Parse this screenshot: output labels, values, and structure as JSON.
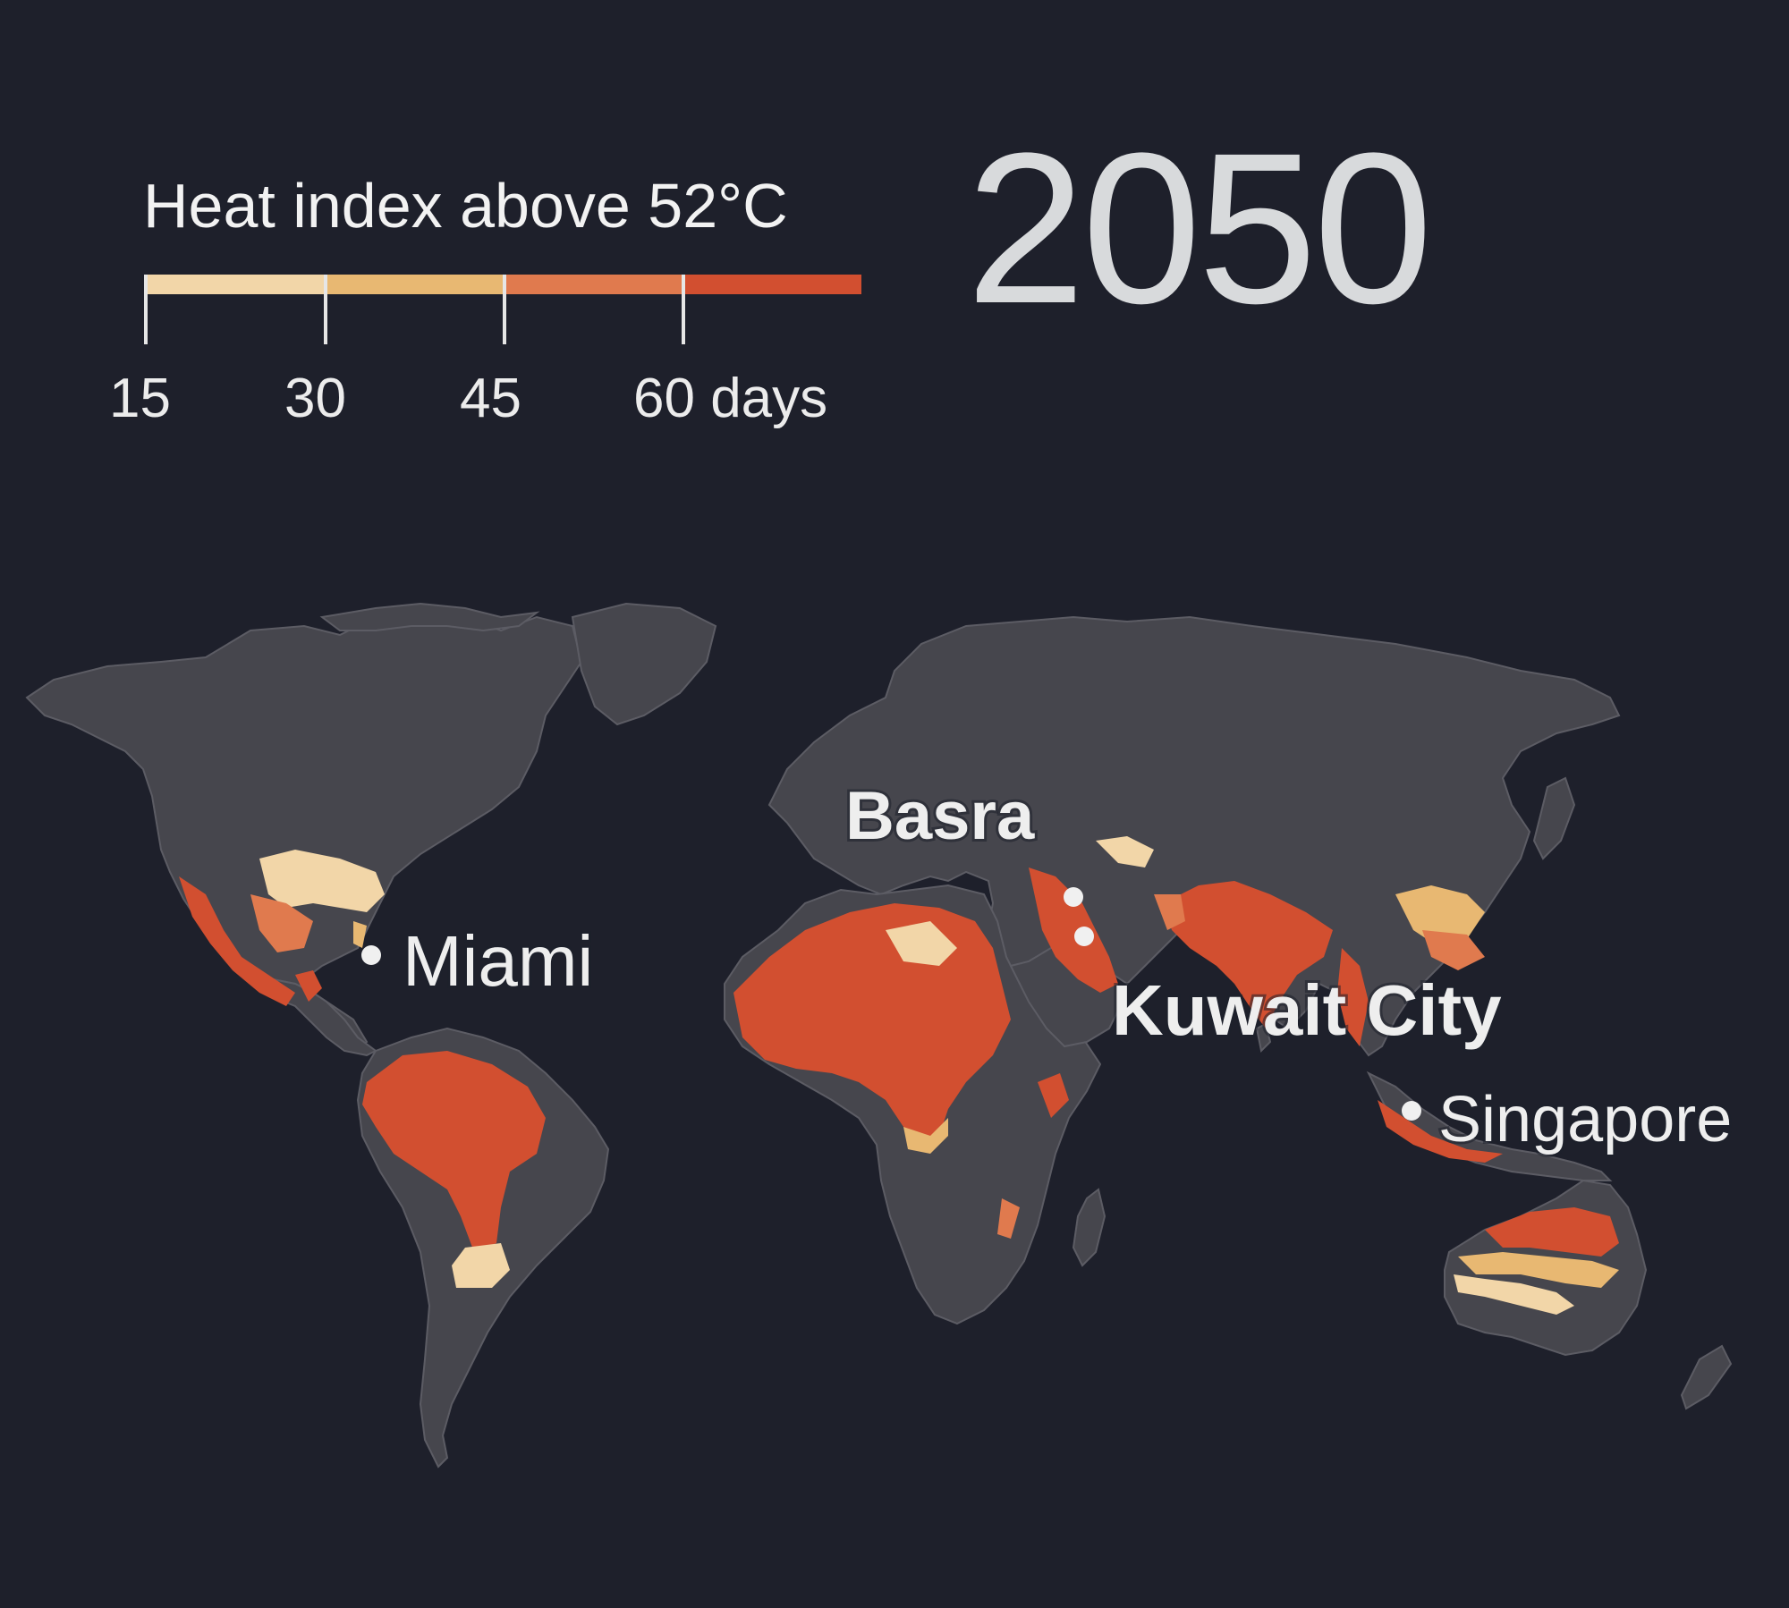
{
  "legend": {
    "title": "Heat index above 52°C",
    "ticks": [
      "15",
      "30",
      "45",
      "60 days"
    ],
    "colors": [
      "#f2d6a8",
      "#e8b872",
      "#e07a4e",
      "#d24f30"
    ]
  },
  "year": "2050",
  "map": {
    "land_color": "#46464d",
    "border_color": "#5c5c64",
    "ocean_color": "#1e202b",
    "cities": [
      {
        "name": "Basra",
        "weight": "bold"
      },
      {
        "name": "Miami",
        "weight": "normal"
      },
      {
        "name": "Kuwait City",
        "weight": "bold"
      },
      {
        "name": "Singapore",
        "weight": "normal"
      }
    ]
  }
}
